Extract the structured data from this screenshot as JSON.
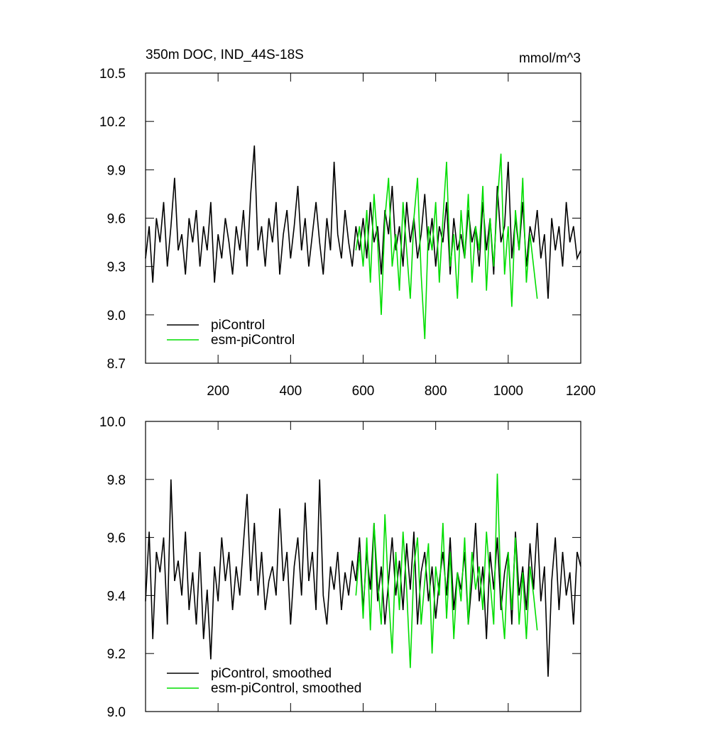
{
  "chart_data": [
    {
      "type": "line",
      "title": "350m DOC, IND_44S-18S",
      "units": "mmol/m^3",
      "xlim": [
        0,
        1200
      ],
      "xticks": [
        200,
        400,
        600,
        800,
        1000,
        1200
      ],
      "ylim": [
        8.7,
        10.5
      ],
      "yticks": [
        8.7,
        {
          "value": 9,
          "label": "9.0"
        },
        9.3,
        9.6,
        9.9,
        10.2,
        10.5
      ],
      "legend": "lower left",
      "x": [
        0,
        10,
        20,
        30,
        40,
        50,
        60,
        70,
        80,
        90,
        100,
        110,
        120,
        130,
        140,
        150,
        160,
        170,
        180,
        190,
        200,
        210,
        220,
        230,
        240,
        250,
        260,
        270,
        280,
        290,
        300,
        310,
        320,
        330,
        340,
        350,
        360,
        370,
        380,
        390,
        400,
        410,
        420,
        430,
        440,
        450,
        460,
        470,
        480,
        490,
        500,
        510,
        520,
        530,
        540,
        550,
        560,
        570,
        580,
        590,
        600,
        610,
        620,
        630,
        640,
        650,
        660,
        670,
        680,
        690,
        700,
        710,
        720,
        730,
        740,
        750,
        760,
        770,
        780,
        790,
        800,
        810,
        820,
        830,
        840,
        850,
        860,
        870,
        880,
        890,
        900,
        910,
        920,
        930,
        940,
        950,
        960,
        970,
        980,
        990,
        1000,
        1010,
        1020,
        1030,
        1040,
        1050,
        1060,
        1070,
        1080,
        1090,
        1100,
        1110,
        1120,
        1130,
        1140,
        1150,
        1160,
        1170,
        1180,
        1190,
        1200
      ],
      "series": [
        {
          "name": "piControl",
          "color": "#000000",
          "values": [
            9.35,
            9.55,
            9.2,
            9.6,
            9.45,
            9.7,
            9.3,
            9.55,
            9.85,
            9.4,
            9.5,
            9.25,
            9.6,
            9.45,
            9.65,
            9.3,
            9.55,
            9.4,
            9.7,
            9.2,
            9.5,
            9.35,
            9.6,
            9.45,
            9.25,
            9.55,
            9.4,
            9.65,
            9.3,
            9.75,
            10.05,
            9.4,
            9.55,
            9.3,
            9.6,
            9.45,
            9.7,
            9.25,
            9.5,
            9.65,
            9.35,
            9.55,
            9.8,
            9.4,
            9.6,
            9.3,
            9.5,
            9.7,
            9.45,
            9.25,
            9.6,
            9.4,
            9.95,
            9.5,
            9.35,
            9.65,
            9.45,
            9.3,
            9.55,
            9.4,
            9.6,
            9.35,
            9.7,
            9.45,
            9.55,
            9.25,
            9.65,
            9.5,
            9.8,
            9.4,
            9.55,
            9.3,
            9.7,
            9.45,
            9.6,
            9.35,
            9.5,
            9.75,
            9.4,
            9.6,
            9.3,
            9.55,
            9.45,
            9.7,
            9.25,
            9.6,
            9.4,
            9.5,
            9.35,
            9.65,
            9.45,
            9.55,
            9.3,
            9.7,
            9.4,
            9.6,
            9.25,
            9.8,
            9.45,
            9.55,
            9.95,
            9.35,
            9.6,
            9.4,
            9.7,
            9.3,
            9.55,
            9.45,
            9.65,
            9.35,
            9.5,
            9.1,
            9.6,
            9.4,
            9.55,
            9.3,
            9.7,
            9.45,
            9.55,
            9.35,
            9.4
          ]
        },
        {
          "name": "esm-piControl",
          "color": "#00dd00",
          "values": [
            null,
            null,
            null,
            null,
            null,
            null,
            null,
            null,
            null,
            null,
            null,
            null,
            null,
            null,
            null,
            null,
            null,
            null,
            null,
            null,
            null,
            null,
            null,
            null,
            null,
            null,
            null,
            null,
            null,
            null,
            null,
            null,
            null,
            null,
            null,
            null,
            null,
            null,
            null,
            null,
            null,
            null,
            null,
            null,
            null,
            null,
            null,
            null,
            null,
            null,
            null,
            null,
            null,
            null,
            null,
            null,
            null,
            null,
            9.4,
            9.55,
            9.3,
            9.65,
            9.2,
            9.75,
            9.45,
            9.0,
            9.6,
            9.85,
            9.3,
            9.5,
            9.15,
            9.7,
            9.4,
            9.1,
            9.6,
            9.85,
            9.25,
            8.85,
            9.55,
            9.4,
            9.7,
            9.2,
            9.6,
            9.95,
            9.3,
            9.5,
            9.1,
            9.65,
            9.35,
            9.75,
            9.2,
            9.55,
            9.4,
            9.8,
            9.15,
            9.6,
            9.3,
            9.7,
            10.0,
            9.25,
            9.55,
            9.05,
            9.65,
            9.4,
            9.85,
            9.2,
            9.5,
            9.3,
            9.1,
            null,
            null,
            null,
            null,
            null,
            null,
            null,
            null,
            null,
            null,
            null,
            null
          ]
        }
      ]
    },
    {
      "type": "line",
      "xlim": [
        0,
        1200
      ],
      "ylim": [
        9.0,
        10.0
      ],
      "yticks": [
        {
          "value": 9,
          "label": "9.0"
        },
        9.2,
        9.4,
        9.6,
        9.8,
        {
          "value": 10,
          "label": "10.0"
        }
      ],
      "legend": "lower left",
      "x": [
        0,
        10,
        20,
        30,
        40,
        50,
        60,
        70,
        80,
        90,
        100,
        110,
        120,
        130,
        140,
        150,
        160,
        170,
        180,
        190,
        200,
        210,
        220,
        230,
        240,
        250,
        260,
        270,
        280,
        290,
        300,
        310,
        320,
        330,
        340,
        350,
        360,
        370,
        380,
        390,
        400,
        410,
        420,
        430,
        440,
        450,
        460,
        470,
        480,
        490,
        500,
        510,
        520,
        530,
        540,
        550,
        560,
        570,
        580,
        590,
        600,
        610,
        620,
        630,
        640,
        650,
        660,
        670,
        680,
        690,
        700,
        710,
        720,
        730,
        740,
        750,
        760,
        770,
        780,
        790,
        800,
        810,
        820,
        830,
        840,
        850,
        860,
        870,
        880,
        890,
        900,
        910,
        920,
        930,
        940,
        950,
        960,
        970,
        980,
        990,
        1000,
        1010,
        1020,
        1030,
        1040,
        1050,
        1060,
        1070,
        1080,
        1090,
        1100,
        1110,
        1120,
        1130,
        1140,
        1150,
        1160,
        1170,
        1180,
        1190,
        1200
      ],
      "series": [
        {
          "name": "piControl, smoothed",
          "color": "#000000",
          "values": [
            9.38,
            9.62,
            9.25,
            9.55,
            9.48,
            9.6,
            9.3,
            9.8,
            9.45,
            9.52,
            9.4,
            9.62,
            9.35,
            9.48,
            9.3,
            9.55,
            9.25,
            9.42,
            9.18,
            9.5,
            9.38,
            9.6,
            9.45,
            9.55,
            9.35,
            9.5,
            9.4,
            9.58,
            9.75,
            9.45,
            9.65,
            9.4,
            9.55,
            9.35,
            9.45,
            9.5,
            9.4,
            9.7,
            9.45,
            9.55,
            9.3,
            9.5,
            9.6,
            9.4,
            9.72,
            9.45,
            9.55,
            9.35,
            9.8,
            9.4,
            9.3,
            9.5,
            9.42,
            9.55,
            9.35,
            9.48,
            9.4,
            9.52,
            9.45,
            9.6,
            9.35,
            9.55,
            9.42,
            9.65,
            9.38,
            9.5,
            9.3,
            9.45,
            9.6,
            9.4,
            9.52,
            9.35,
            9.58,
            9.42,
            9.62,
            9.3,
            9.48,
            9.55,
            9.38,
            9.5,
            9.32,
            9.45,
            9.55,
            9.4,
            9.6,
            9.35,
            9.48,
            9.42,
            9.55,
            9.3,
            9.45,
            9.65,
            9.38,
            9.5,
            9.25,
            9.55,
            9.42,
            9.6,
            9.35,
            9.48,
            9.55,
            9.3,
            9.62,
            9.4,
            9.5,
            9.35,
            9.58,
            9.42,
            9.65,
            9.38,
            9.5,
            9.12,
            9.45,
            9.6,
            9.35,
            9.55,
            9.4,
            9.48,
            9.3,
            9.55,
            9.5
          ]
        },
        {
          "name": "esm-piControl, smoothed",
          "color": "#00dd00",
          "values": [
            null,
            null,
            null,
            null,
            null,
            null,
            null,
            null,
            null,
            null,
            null,
            null,
            null,
            null,
            null,
            null,
            null,
            null,
            null,
            null,
            null,
            null,
            null,
            null,
            null,
            null,
            null,
            null,
            null,
            null,
            null,
            null,
            null,
            null,
            null,
            null,
            null,
            null,
            null,
            null,
            null,
            null,
            null,
            null,
            null,
            null,
            null,
            null,
            null,
            null,
            null,
            null,
            null,
            null,
            null,
            null,
            null,
            null,
            9.4,
            9.55,
            9.32,
            9.6,
            9.28,
            9.65,
            9.45,
            9.3,
            9.68,
            9.4,
            9.2,
            9.55,
            9.35,
            9.62,
            9.42,
            9.15,
            9.5,
            9.6,
            9.3,
            9.45,
            9.58,
            9.2,
            9.5,
            9.4,
            9.65,
            9.32,
            9.55,
            9.25,
            9.48,
            9.38,
            9.6,
            9.3,
            9.55,
            9.42,
            9.5,
            9.35,
            9.62,
            9.45,
            9.3,
            9.82,
            9.4,
            9.25,
            9.55,
            9.35,
            9.6,
            9.3,
            9.48,
            9.25,
            9.5,
            9.4,
            9.28,
            null,
            null,
            null,
            null,
            null,
            null,
            null,
            null,
            null,
            null,
            null,
            null
          ]
        }
      ]
    }
  ]
}
